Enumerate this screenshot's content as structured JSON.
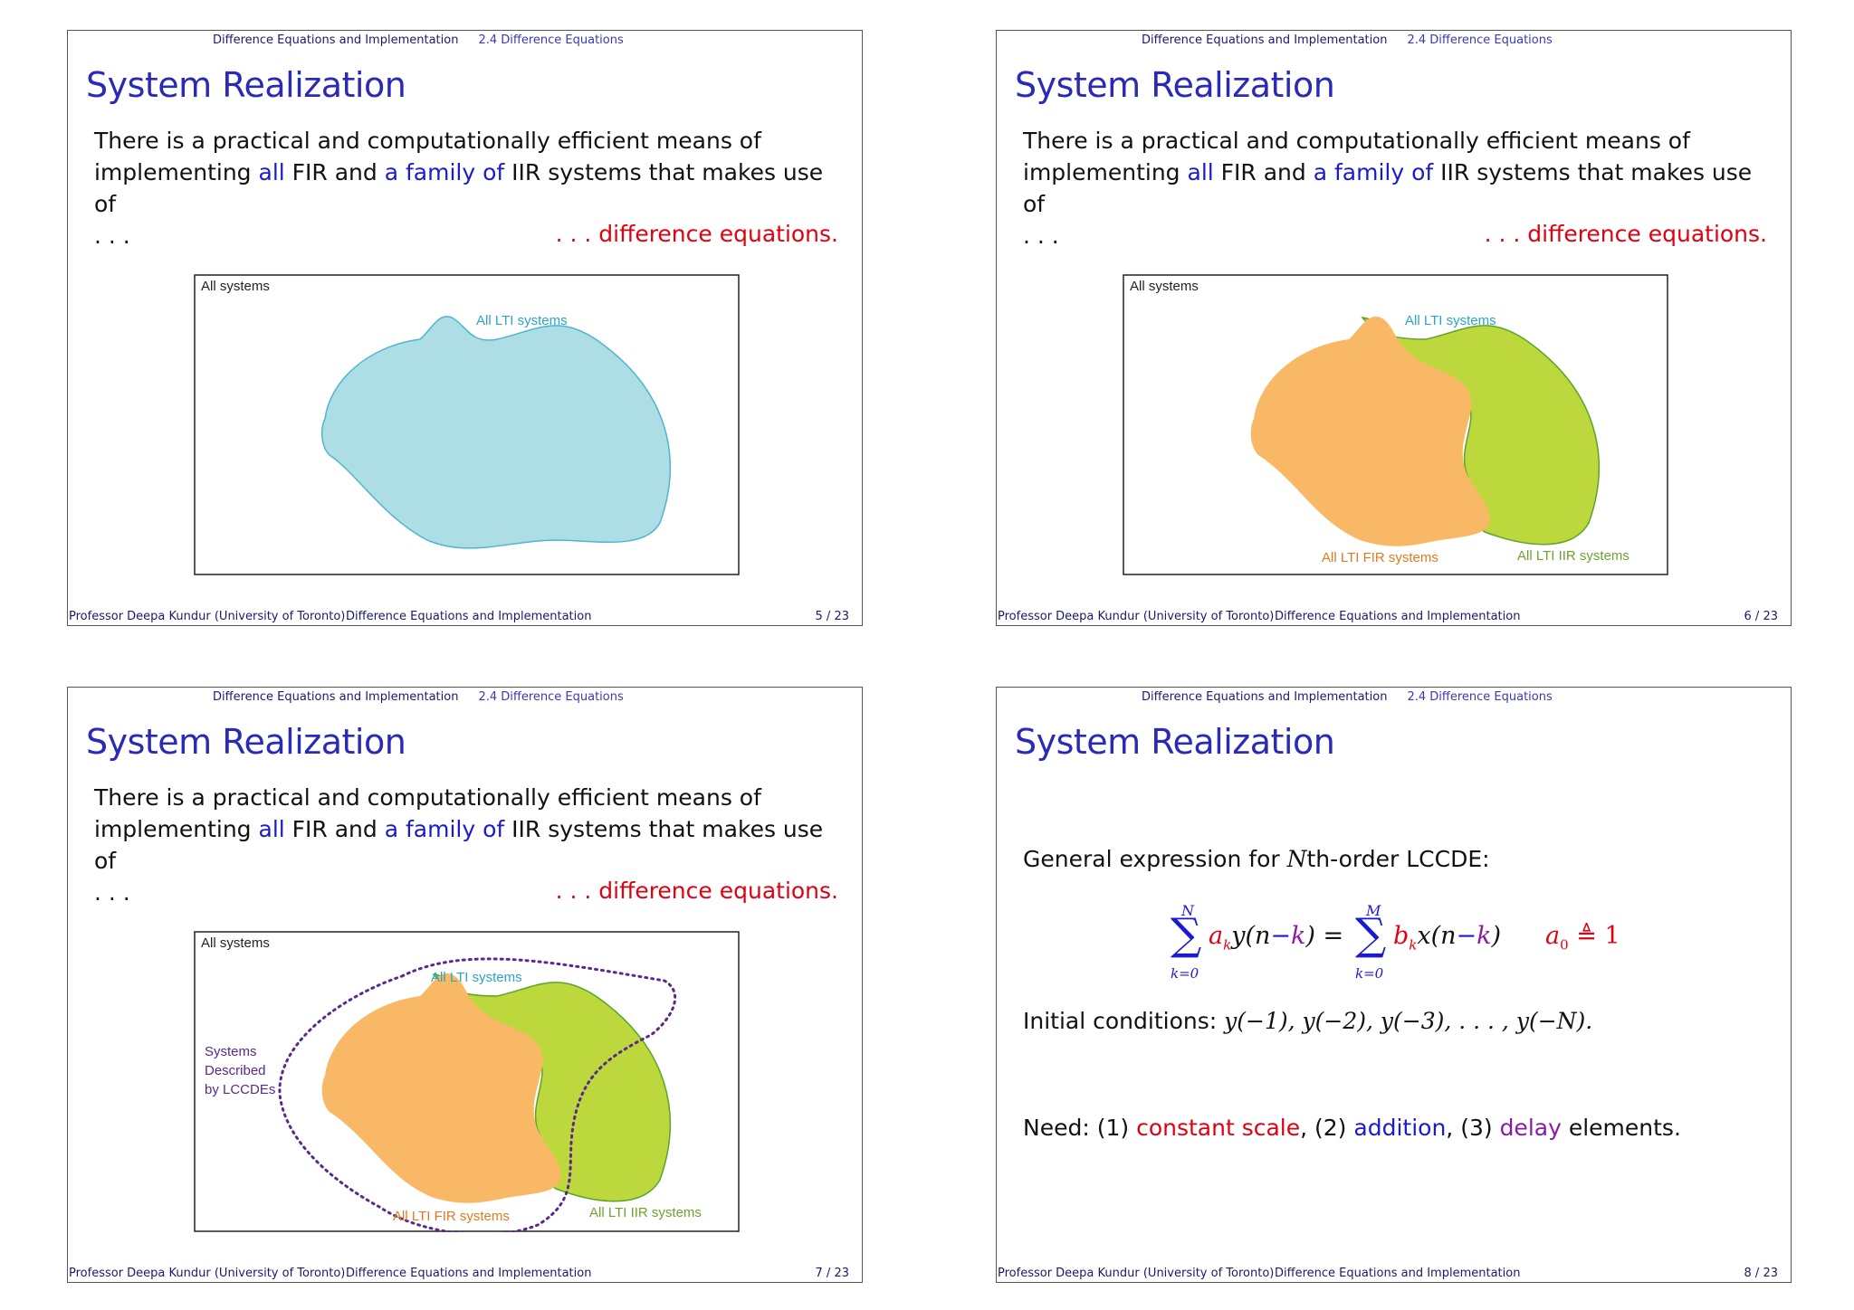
{
  "header": {
    "part": "Difference Equations and Implementation",
    "section": "2.4 Difference Equations"
  },
  "slide_title": "System Realization",
  "intro": {
    "line1": "There is a practical and computationally efficient means of",
    "impl": "implementing",
    "all": "all",
    "fir_and": "FIR and",
    "a_family_of": "a family of",
    "iir_rest": "IIR systems that makes use of",
    "ellipsis": ". . .",
    "conclusion": ". . . difference equations."
  },
  "figure": {
    "all_systems": "All systems",
    "all_lti": "All LTI systems",
    "all_fir": "All LTI FIR systems",
    "all_iir": "All LTI IIR systems",
    "lccde_1": "Systems",
    "lccde_2": "Described",
    "lccde_3": "by LCCDEs",
    "colors": {
      "lti": "#aedee5",
      "lti_stroke": "#4fb5cf",
      "fir": "#f8b865",
      "iir": "#bcd83c",
      "iir_stroke": "#5aa52a",
      "lccde": "#5a2a8a"
    }
  },
  "footer": {
    "author": "Professor Deepa Kundur (University of Toronto)",
    "title": "Difference Equations and Implementation",
    "pages": [
      "5 / 23",
      "6 / 23",
      "7 / 23",
      "8 / 23"
    ]
  },
  "slide8": {
    "general": "General expression for",
    "nth": "N",
    "order": "th-order LCCDE:",
    "initial_label": "Initial conditions:",
    "initial_values": "y(−1), y(−2), y(−3), . . . , y(−N).",
    "need": "Need: (1)",
    "constant_scale": "constant scale",
    "comma2": ", (2)",
    "addition": "addition",
    "comma3": ", (3)",
    "delay": "delay",
    "elements": "elements."
  }
}
